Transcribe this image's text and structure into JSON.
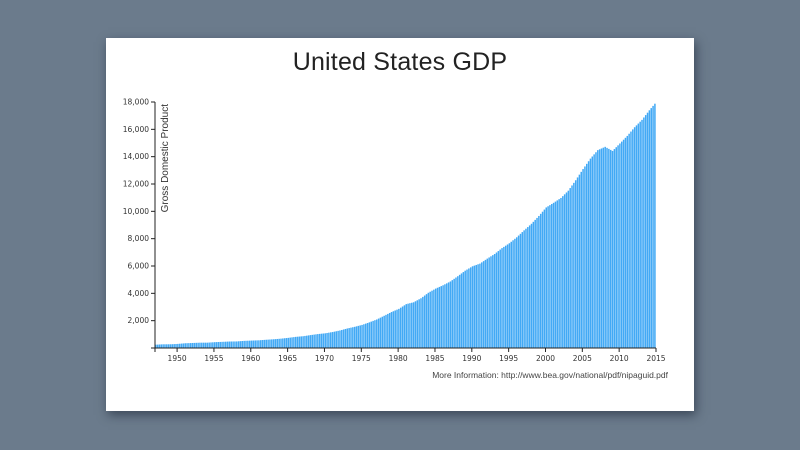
{
  "page": {
    "title": "United States GDP",
    "footer": "More Information: http://www.bea.gov/national/pdf/nipaguid.pdf",
    "bar_color": "#42a9f5",
    "background_color": "#6b7b8c"
  },
  "chart_data": {
    "type": "bar",
    "title": "United States GDP",
    "xlabel": "",
    "ylabel": "Gross Domestic Product",
    "xlim": [
      1947,
      2015
    ],
    "ylim": [
      0,
      18000
    ],
    "x_ticks": [
      1950,
      1955,
      1960,
      1965,
      1970,
      1975,
      1980,
      1985,
      1990,
      1995,
      2000,
      2005,
      2010,
      2015
    ],
    "y_ticks": [
      2000,
      4000,
      6000,
      8000,
      10000,
      12000,
      14000,
      16000,
      18000
    ],
    "y_tick_labels": [
      "2,000",
      "4,000",
      "6,000",
      "8,000",
      "10,000",
      "12,000",
      "14,000",
      "16,000",
      "18,000"
    ],
    "grid": false,
    "legend": null,
    "annotation": "More Information: http://www.bea.gov/national/pdf/nipaguid.pdf",
    "x": [
      1947,
      1948,
      1949,
      1950,
      1951,
      1952,
      1953,
      1954,
      1955,
      1956,
      1957,
      1958,
      1959,
      1960,
      1961,
      1962,
      1963,
      1964,
      1965,
      1966,
      1967,
      1968,
      1969,
      1970,
      1971,
      1972,
      1973,
      1974,
      1975,
      1976,
      1977,
      1978,
      1979,
      1980,
      1981,
      1982,
      1983,
      1984,
      1985,
      1986,
      1987,
      1988,
      1989,
      1990,
      1991,
      1992,
      1993,
      1994,
      1995,
      1996,
      1997,
      1998,
      1999,
      2000,
      2001,
      2002,
      2003,
      2004,
      2005,
      2006,
      2007,
      2008,
      2009,
      2010,
      2011,
      2012,
      2013,
      2014,
      2015
    ],
    "values": [
      243,
      270,
      272,
      300,
      347,
      367,
      389,
      391,
      426,
      450,
      474,
      481,
      522,
      543,
      563,
      605,
      638,
      685,
      743,
      815,
      862,
      943,
      1019,
      1075,
      1168,
      1282,
      1429,
      1549,
      1689,
      1878,
      2086,
      2357,
      2632,
      2863,
      3211,
      3345,
      3638,
      4041,
      4347,
      4590,
      4870,
      5253,
      5658,
      5980,
      6174,
      6539,
      6879,
      7309,
      7664,
      8100,
      8609,
      9089,
      9661,
      10285,
      10622,
      10978,
      11511,
      12275,
      13094,
      13856,
      14478,
      14719,
      14419,
      14964,
      15518,
      16155,
      16692,
      17393,
      18037
    ]
  }
}
